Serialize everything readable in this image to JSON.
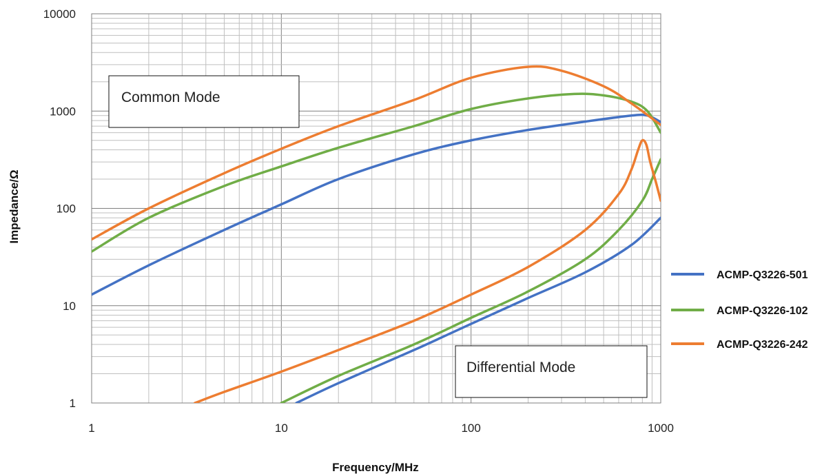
{
  "chart_data": {
    "type": "line",
    "title": "",
    "xlabel": "Frequency/MHz",
    "ylabel": "Impedance/Ω",
    "x_scale": "log",
    "y_scale": "log",
    "xlim": [
      1,
      1000
    ],
    "ylim": [
      1,
      10000
    ],
    "x_ticks": [
      "1",
      "10",
      "100",
      "1000"
    ],
    "y_ticks": [
      "1",
      "10",
      "100",
      "1000",
      "10000"
    ],
    "grid": true,
    "legend_position": "right",
    "annotations": [
      "Common Mode",
      "Differential Mode"
    ],
    "series": [
      {
        "name": "ACMP-Q3226-501",
        "color": "#4472c4",
        "segments": [
          {
            "mode": "Common Mode",
            "points": [
              [
                1,
                13
              ],
              [
                2,
                26
              ],
              [
                5,
                60
              ],
              [
                10,
                110
              ],
              [
                20,
                200
              ],
              [
                50,
                360
              ],
              [
                100,
                500
              ],
              [
                200,
                640
              ],
              [
                400,
                780
              ],
              [
                700,
                900
              ],
              [
                850,
                900
              ],
              [
                1000,
                770
              ]
            ]
          },
          {
            "mode": "Differential Mode",
            "points": [
              [
                12,
                1
              ],
              [
                20,
                1.6
              ],
              [
                50,
                3.5
              ],
              [
                100,
                6.5
              ],
              [
                200,
                12
              ],
              [
                400,
                22
              ],
              [
                700,
                42
              ],
              [
                1000,
                80
              ]
            ]
          }
        ]
      },
      {
        "name": "ACMP-Q3226-102",
        "color": "#70ad47",
        "segments": [
          {
            "mode": "Common Mode",
            "points": [
              [
                1,
                36
              ],
              [
                2,
                80
              ],
              [
                5,
                170
              ],
              [
                10,
                270
              ],
              [
                20,
                420
              ],
              [
                50,
                700
              ],
              [
                100,
                1050
              ],
              [
                200,
                1350
              ],
              [
                350,
                1500
              ],
              [
                500,
                1450
              ],
              [
                700,
                1250
              ],
              [
                850,
                1000
              ],
              [
                1000,
                600
              ]
            ]
          },
          {
            "mode": "Differential Mode",
            "points": [
              [
                10,
                1
              ],
              [
                20,
                1.9
              ],
              [
                50,
                4
              ],
              [
                100,
                7.5
              ],
              [
                200,
                14
              ],
              [
                400,
                30
              ],
              [
                600,
                60
              ],
              [
                800,
                120
              ],
              [
                900,
                200
              ],
              [
                1000,
                320
              ]
            ]
          }
        ]
      },
      {
        "name": "ACMP-Q3226-242",
        "color": "#ed7d31",
        "segments": [
          {
            "mode": "Common Mode",
            "points": [
              [
                1,
                48
              ],
              [
                2,
                100
              ],
              [
                5,
                230
              ],
              [
                10,
                410
              ],
              [
                20,
                700
              ],
              [
                50,
                1300
              ],
              [
                100,
                2200
              ],
              [
                200,
                2850
              ],
              [
                300,
                2600
              ],
              [
                500,
                1800
              ],
              [
                700,
                1200
              ],
              [
                1000,
                720
              ]
            ]
          },
          {
            "mode": "Differential Mode",
            "points": [
              [
                3.5,
                1
              ],
              [
                5,
                1.3
              ],
              [
                10,
                2.1
              ],
              [
                20,
                3.5
              ],
              [
                50,
                7
              ],
              [
                100,
                13
              ],
              [
                200,
                25
              ],
              [
                400,
                60
              ],
              [
                600,
                140
              ],
              [
                700,
                250
              ],
              [
                760,
                400
              ],
              [
                800,
                500
              ],
              [
                840,
                450
              ],
              [
                880,
                300
              ],
              [
                940,
                190
              ],
              [
                1000,
                120
              ]
            ]
          }
        ]
      }
    ]
  }
}
